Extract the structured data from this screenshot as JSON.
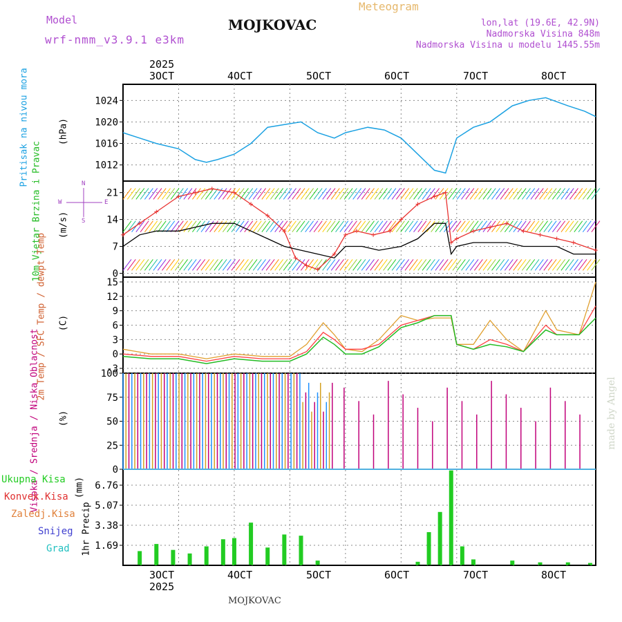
{
  "header": {
    "model_label": "Model",
    "model_name": "wrf-nmm_v3.9.1 e3km",
    "station": "MOJKOVAC",
    "meteogram": "Meteogram",
    "lonlat": "lon,lat (19.6E, 42.9N)",
    "altitude": "Nadmorska Visina 848m",
    "model_altitude": "Nadmorska Visina u modelu 1445.55m",
    "footer_station": "MOJKOVAC",
    "watermark": "made by Angel"
  },
  "colors": {
    "pressure": "#1ba1e2",
    "wind_gust": "#e8312f",
    "wind_speed": "#000000",
    "temp2m": "#ff4040",
    "sfc_temp": "#e0a030",
    "dewpt": "#22bb22",
    "cloud_high": "#1e90ff",
    "cloud_mid": "#d4a020",
    "cloud_low": "#c0007a",
    "precip_total": "#22cc22",
    "precip_conv": "#e03030",
    "compass": "#a040c0"
  },
  "axis": {
    "year_top": "2025",
    "year_bottom": "2025",
    "dates": [
      "3OCT",
      "4OCT",
      "5OCT",
      "6OCT",
      "7OCT",
      "8OCT"
    ]
  },
  "compass": {
    "n": "N",
    "s": "S",
    "e": "E",
    "w": "W"
  },
  "chart_data": [
    {
      "type": "line",
      "title": "Pritisak na nivou mora",
      "ylabel": "(hPa)",
      "ylim": [
        1009,
        1027
      ],
      "yticks": [
        1012,
        1016,
        1020,
        1024
      ],
      "x_unit": "days from 2 Oct 2025 00Z",
      "series": [
        {
          "name": "Sea level pressure",
          "x": [
            0,
            0.3,
            0.6,
            1.0,
            1.3,
            1.5,
            1.7,
            2.0,
            2.3,
            2.6,
            2.9,
            3.2,
            3.5,
            3.8,
            4.0,
            4.4,
            4.7,
            5.0,
            5.3,
            5.6,
            5.8,
            6.0,
            6.3,
            6.6,
            7.0,
            7.3,
            7.6,
            8.0,
            8.3,
            8.5
          ],
          "y": [
            1018,
            1017,
            1016,
            1015,
            1013,
            1012.5,
            1013,
            1014,
            1016,
            1019,
            1019.5,
            1020,
            1018,
            1017,
            1018,
            1019,
            1018.5,
            1017,
            1014,
            1011,
            1010.5,
            1017,
            1019,
            1020,
            1023,
            1024,
            1024.5,
            1023,
            1022,
            1021
          ]
        }
      ]
    },
    {
      "type": "line",
      "title": "10m Vjetar Brzina i Pravac",
      "ylabel": "(m/s)",
      "ylim": [
        -1,
        24
      ],
      "yticks": [
        0,
        7,
        14,
        21
      ],
      "series": [
        {
          "name": "Wind gust",
          "x": [
            0,
            0.3,
            0.6,
            1.0,
            1.3,
            1.6,
            2.0,
            2.3,
            2.6,
            2.9,
            3.1,
            3.3,
            3.5,
            3.8,
            4.0,
            4.2,
            4.5,
            4.8,
            5.0,
            5.3,
            5.6,
            5.8,
            5.9,
            6.0,
            6.3,
            6.6,
            6.9,
            7.2,
            7.5,
            7.8,
            8.1,
            8.5
          ],
          "y": [
            10,
            13,
            16,
            20,
            21,
            22,
            21,
            18,
            15,
            11,
            4,
            2,
            1,
            5,
            10,
            11,
            10,
            11,
            14,
            18,
            20,
            21,
            8,
            9,
            11,
            12,
            13,
            11,
            10,
            9,
            8,
            6
          ]
        },
        {
          "name": "Wind speed",
          "x": [
            0,
            0.3,
            0.6,
            1.0,
            1.3,
            1.6,
            2.0,
            2.3,
            2.6,
            2.9,
            3.2,
            3.5,
            3.8,
            4.0,
            4.3,
            4.6,
            5.0,
            5.3,
            5.6,
            5.8,
            5.9,
            6.0,
            6.3,
            6.6,
            6.9,
            7.2,
            7.5,
            7.8,
            8.1,
            8.5
          ],
          "y": [
            7,
            10,
            11,
            11,
            12,
            13,
            13,
            11,
            9,
            7,
            6,
            5,
            4,
            7,
            7,
            6,
            7,
            9,
            13,
            13,
            5,
            7,
            8,
            8,
            8,
            7,
            7,
            7,
            5,
            5
          ]
        }
      ]
    },
    {
      "type": "line",
      "title": "2m Temp / SFC Temp / dewpt Temp",
      "ylabel": "(C)",
      "ylim": [
        -4,
        16
      ],
      "yticks": [
        -3,
        0,
        3,
        6,
        9,
        12,
        15
      ],
      "series": [
        {
          "name": "2m Temp",
          "x": [
            0,
            0.5,
            1.0,
            1.5,
            2.0,
            2.5,
            3.0,
            3.3,
            3.6,
            3.8,
            4.0,
            4.3,
            4.6,
            5.0,
            5.3,
            5.6,
            5.9,
            6.0,
            6.3,
            6.6,
            6.9,
            7.2,
            7.6,
            7.8,
            8.2,
            8.5
          ],
          "y": [
            0,
            -0.5,
            -0.5,
            -1.5,
            -0.5,
            -1,
            -1,
            0.5,
            4.5,
            3,
            1,
            1,
            2,
            6,
            7,
            8,
            8,
            2,
            1,
            3,
            2,
            0.5,
            6,
            4,
            4,
            10
          ]
        },
        {
          "name": "SFC Temp",
          "x": [
            0,
            0.5,
            1.0,
            1.5,
            2.0,
            2.5,
            3.0,
            3.3,
            3.6,
            3.8,
            4.0,
            4.3,
            4.6,
            5.0,
            5.3,
            5.6,
            5.9,
            6.0,
            6.3,
            6.6,
            6.9,
            7.2,
            7.6,
            7.8,
            8.2,
            8.5
          ],
          "y": [
            1,
            0,
            0,
            -1,
            0,
            -0.5,
            -0.5,
            2,
            6.5,
            4,
            1,
            0.5,
            3,
            8,
            7,
            7.5,
            7.5,
            2,
            2,
            7,
            3,
            0.5,
            9,
            5,
            4,
            15
          ]
        },
        {
          "name": "dewpt Temp",
          "x": [
            0,
            0.5,
            1.0,
            1.5,
            2.0,
            2.5,
            3.0,
            3.3,
            3.6,
            3.8,
            4.0,
            4.3,
            4.6,
            5.0,
            5.3,
            5.6,
            5.9,
            6.0,
            6.3,
            6.6,
            6.9,
            7.2,
            7.6,
            7.8,
            8.2,
            8.5
          ],
          "y": [
            -0.5,
            -1,
            -1,
            -2,
            -1,
            -1.5,
            -1.5,
            0,
            3.5,
            2,
            0,
            0,
            1.5,
            5.5,
            6.5,
            8,
            8,
            2,
            1,
            2,
            1.5,
            0.5,
            5,
            4,
            4,
            7.5
          ]
        }
      ]
    },
    {
      "type": "bar",
      "title": "Visoka / Srednja / Niska Oblacnost",
      "ylabel": "(%)",
      "ylim": [
        0,
        100
      ],
      "yticks": [
        0,
        25,
        50,
        75,
        100
      ],
      "note": "overcast (~100%) for days 0.0–3.8; intermittent low cloud afterwards"
    },
    {
      "type": "bar",
      "title": "1hr Precip",
      "ylabel": "(mm)",
      "ylim": [
        0,
        8.1
      ],
      "yticks": [
        1.69,
        3.38,
        5.07,
        6.76
      ],
      "ytick_labels": [
        "1.69",
        "3.38",
        "5.07",
        "6.76"
      ],
      "legend": [
        "Ukupna Kisa",
        "Konvek.Kisa",
        "Zaledj.Kisa",
        "Snijeg",
        "Grad"
      ],
      "series": [
        {
          "name": "Ukupna Kisa",
          "x": [
            0.3,
            0.6,
            0.9,
            1.2,
            1.5,
            1.8,
            2.0,
            2.3,
            2.6,
            2.9,
            3.2,
            3.5,
            5.3,
            5.5,
            5.7,
            5.9,
            6.1,
            6.3,
            7.0,
            7.5,
            8.0,
            8.4
          ],
          "y": [
            1.2,
            1.8,
            1.3,
            1.0,
            1.6,
            2.2,
            2.3,
            3.6,
            1.5,
            2.6,
            2.5,
            0.4,
            0.3,
            2.8,
            4.5,
            8.0,
            1.6,
            0.5,
            0.4,
            0.25,
            0.25,
            0.2
          ]
        }
      ]
    }
  ]
}
